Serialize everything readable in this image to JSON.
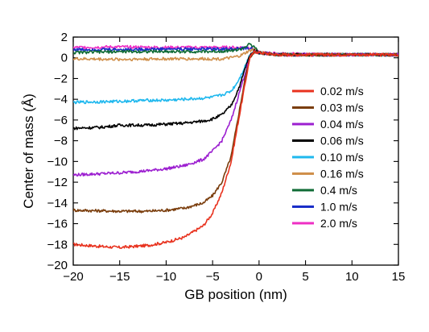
{
  "chart_data": {
    "type": "line",
    "title": "",
    "xlabel": "GB position (nm)",
    "ylabel": "Center of mass (Å)",
    "xlim": [
      -20,
      15
    ],
    "ylim": [
      -20,
      2
    ],
    "xticks": [
      -20,
      -15,
      -10,
      -5,
      0,
      5,
      10,
      15
    ],
    "yticks": [
      -20,
      -18,
      -16,
      -14,
      -12,
      -10,
      -8,
      -6,
      -4,
      -2,
      0,
      2
    ],
    "legend_position": "center-right",
    "series": [
      {
        "name": "0.02 m/s",
        "color": "#e8321e",
        "points": [
          [
            -20,
            -18.0
          ],
          [
            -17,
            -18.2
          ],
          [
            -15,
            -18.3
          ],
          [
            -12,
            -18.1
          ],
          [
            -10,
            -17.8
          ],
          [
            -8,
            -17.3
          ],
          [
            -6,
            -16.2
          ],
          [
            -5,
            -15.0
          ],
          [
            -4,
            -13.0
          ],
          [
            -3,
            -10.0
          ],
          [
            -2.5,
            -7.5
          ],
          [
            -2,
            -5.0
          ],
          [
            -1.5,
            -2.5
          ],
          [
            -1,
            0.0
          ],
          [
            -0.5,
            0.6
          ],
          [
            0,
            0.5
          ],
          [
            2,
            0.3
          ],
          [
            5,
            0.3
          ],
          [
            10,
            0.3
          ],
          [
            15,
            0.3
          ]
        ]
      },
      {
        "name": "0.03 m/s",
        "color": "#7a3d0c",
        "points": [
          [
            -20,
            -14.7
          ],
          [
            -15,
            -14.8
          ],
          [
            -12,
            -14.8
          ],
          [
            -10,
            -14.7
          ],
          [
            -8,
            -14.5
          ],
          [
            -6,
            -14.0
          ],
          [
            -5,
            -13.3
          ],
          [
            -4,
            -12.0
          ],
          [
            -3,
            -9.5
          ],
          [
            -2.5,
            -7.0
          ],
          [
            -2,
            -4.5
          ],
          [
            -1.5,
            -2.0
          ],
          [
            -1,
            0.0
          ],
          [
            -0.5,
            0.6
          ],
          [
            0,
            0.5
          ],
          [
            2,
            0.3
          ],
          [
            5,
            0.3
          ],
          [
            10,
            0.3
          ],
          [
            15,
            0.3
          ]
        ]
      },
      {
        "name": "0.04 m/s",
        "color": "#9c1fd0",
        "points": [
          [
            -20,
            -11.3
          ],
          [
            -15,
            -11.1
          ],
          [
            -12,
            -10.9
          ],
          [
            -10,
            -10.7
          ],
          [
            -8,
            -10.4
          ],
          [
            -6,
            -9.8
          ],
          [
            -5,
            -9.0
          ],
          [
            -4,
            -8.0
          ],
          [
            -3,
            -6.0
          ],
          [
            -2.5,
            -4.5
          ],
          [
            -2,
            -3.0
          ],
          [
            -1.5,
            -1.5
          ],
          [
            -1,
            0.0
          ],
          [
            -0.5,
            0.6
          ],
          [
            0,
            0.5
          ],
          [
            2,
            0.3
          ],
          [
            5,
            0.3
          ],
          [
            10,
            0.3
          ],
          [
            15,
            0.3
          ]
        ]
      },
      {
        "name": "0.06 m/s",
        "color": "#000000",
        "points": [
          [
            -20,
            -6.8
          ],
          [
            -17,
            -6.7
          ],
          [
            -15,
            -6.5
          ],
          [
            -12,
            -6.5
          ],
          [
            -10,
            -6.4
          ],
          [
            -8,
            -6.3
          ],
          [
            -6,
            -6.1
          ],
          [
            -5,
            -5.9
          ],
          [
            -4,
            -5.5
          ],
          [
            -3,
            -4.6
          ],
          [
            -2.5,
            -3.6
          ],
          [
            -2,
            -2.5
          ],
          [
            -1.5,
            -1.0
          ],
          [
            -1,
            0.2
          ],
          [
            -0.5,
            0.7
          ],
          [
            0,
            0.5
          ],
          [
            2,
            0.3
          ],
          [
            5,
            0.3
          ],
          [
            10,
            0.3
          ],
          [
            15,
            0.3
          ]
        ]
      },
      {
        "name": "0.10 m/s",
        "color": "#1fb8ee",
        "points": [
          [
            -20,
            -4.3
          ],
          [
            -15,
            -4.2
          ],
          [
            -12,
            -4.1
          ],
          [
            -10,
            -4.1
          ],
          [
            -8,
            -4.0
          ],
          [
            -6,
            -3.9
          ],
          [
            -5,
            -3.8
          ],
          [
            -4,
            -3.6
          ],
          [
            -3,
            -3.2
          ],
          [
            -2.5,
            -2.6
          ],
          [
            -2,
            -1.8
          ],
          [
            -1.5,
            -0.8
          ],
          [
            -1,
            0.3
          ],
          [
            -0.5,
            0.7
          ],
          [
            0,
            0.5
          ],
          [
            2,
            0.3
          ],
          [
            5,
            0.3
          ],
          [
            10,
            0.3
          ],
          [
            15,
            0.3
          ]
        ]
      },
      {
        "name": "0.16 m/s",
        "color": "#cf8f4a",
        "points": [
          [
            -20,
            -0.1
          ],
          [
            -15,
            -0.15
          ],
          [
            -10,
            -0.1
          ],
          [
            -6,
            -0.1
          ],
          [
            -4,
            -0.1
          ],
          [
            -3,
            0.0
          ],
          [
            -2,
            0.2
          ],
          [
            -1,
            0.7
          ],
          [
            -0.5,
            0.8
          ],
          [
            0,
            0.5
          ],
          [
            2,
            0.3
          ],
          [
            5,
            0.3
          ],
          [
            10,
            0.3
          ],
          [
            15,
            0.3
          ]
        ]
      },
      {
        "name": "0.4 m/s",
        "color": "#0f6b35",
        "points": [
          [
            -20,
            0.5
          ],
          [
            -15,
            0.6
          ],
          [
            -10,
            0.6
          ],
          [
            -5,
            0.6
          ],
          [
            -3,
            0.7
          ],
          [
            -2,
            0.8
          ],
          [
            -1,
            1.3
          ],
          [
            -0.5,
            1.0
          ],
          [
            0,
            0.5
          ],
          [
            2,
            0.3
          ],
          [
            5,
            0.3
          ],
          [
            10,
            0.3
          ],
          [
            15,
            0.3
          ]
        ]
      },
      {
        "name": "1.0 m/s",
        "color": "#1a2ec8",
        "points": [
          [
            -20,
            0.8
          ],
          [
            -15,
            0.8
          ],
          [
            -10,
            0.85
          ],
          [
            -5,
            0.85
          ],
          [
            -3,
            0.85
          ],
          [
            -2,
            0.9
          ],
          [
            -1,
            0.9
          ],
          [
            -0.5,
            0.8
          ],
          [
            0,
            0.5
          ],
          [
            2,
            0.3
          ],
          [
            5,
            0.3
          ],
          [
            10,
            0.3
          ],
          [
            15,
            0.3
          ]
        ]
      },
      {
        "name": "2.0 m/s",
        "color": "#ee2fc4",
        "points": [
          [
            -20,
            1.0
          ],
          [
            -15,
            1.05
          ],
          [
            -10,
            1.0
          ],
          [
            -5,
            1.0
          ],
          [
            -3,
            1.0
          ],
          [
            -2,
            1.0
          ],
          [
            -1,
            1.0
          ],
          [
            -0.5,
            0.8
          ],
          [
            0,
            0.5
          ],
          [
            2,
            0.4
          ],
          [
            5,
            0.35
          ],
          [
            10,
            0.3
          ],
          [
            15,
            0.3
          ]
        ]
      }
    ]
  }
}
